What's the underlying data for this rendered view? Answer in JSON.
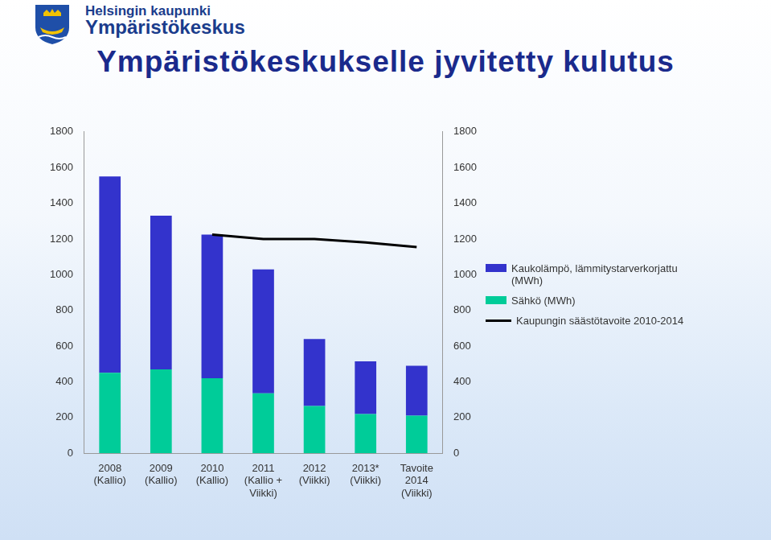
{
  "header": {
    "organization": "Helsingin kaupunki",
    "department": "Ympäristökeskus"
  },
  "chart_data": {
    "type": "bar",
    "title": "Ympäristökeskukselle jyvitetty kulutus",
    "stacked": true,
    "grid": false,
    "legend": "right",
    "categories": [
      "2008\n(Kallio)",
      "2009\n(Kallio)",
      "2010\n(Kallio)",
      "2011\n(Kallio +\nViikki)",
      "2012\n(Viikki)",
      "2013*\n(Viikki)",
      "Tavoite\n2014\n(Viikki)"
    ],
    "series": [
      {
        "name": "Kaukolämpö, lämmitystarverkorjattu (MWh)",
        "type": "bar",
        "color": "#3333cc",
        "values": [
          1100,
          860,
          805,
          695,
          375,
          295,
          280
        ]
      },
      {
        "name": "Sähkö (MWh)",
        "type": "bar",
        "color": "#00cc99",
        "values": [
          450,
          470,
          420,
          335,
          265,
          220,
          210
        ]
      },
      {
        "name": "Kaupungin säästötavoite 2010-2014",
        "type": "line",
        "color": "#000000",
        "marker": "none",
        "line_style": "solid",
        "values": [
          null,
          null,
          1225,
          1200,
          1200,
          1180,
          1155
        ]
      }
    ],
    "ylim": [
      0,
      1800
    ],
    "yticks": [
      0,
      200,
      400,
      600,
      800,
      1000,
      1200,
      1400,
      1600,
      1800
    ],
    "y2lim": [
      0,
      1800
    ],
    "y2ticks": [
      0,
      200,
      400,
      600,
      800,
      1000,
      1200,
      1400,
      1600,
      1800
    ]
  }
}
